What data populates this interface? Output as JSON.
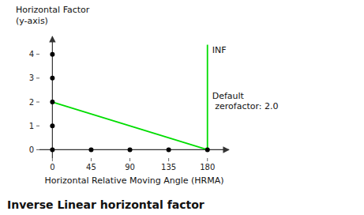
{
  "chart_data": {
    "type": "line",
    "title": "Inverse Linear horizontal factor",
    "ylabel_lines": [
      "Horizontal Factor",
      "(y-axis)"
    ],
    "xlabel": "Horizontal Relative Moving Angle (HRMA)",
    "xlim": [
      -15,
      205
    ],
    "ylim": [
      -0.35,
      4.75
    ],
    "xticks": [
      0,
      45,
      90,
      135,
      180
    ],
    "yticks": [
      0,
      1,
      2,
      3,
      4
    ],
    "grid": false,
    "series": [
      {
        "type": "line",
        "color": "#00dd00",
        "x": [
          0,
          180
        ],
        "values": [
          2.0,
          0.0
        ]
      },
      {
        "type": "line",
        "color": "#00dd00",
        "x": [
          180,
          180
        ],
        "values": [
          0.0,
          4.4
        ]
      },
      {
        "type": "scatter",
        "color": "#000000",
        "x": [
          0,
          0,
          0,
          0,
          0,
          45,
          90,
          135,
          180
        ],
        "values": [
          0,
          1,
          2,
          3,
          4,
          0,
          0,
          0,
          0
        ]
      }
    ],
    "annotations": [
      "INF",
      "Default\n zerofactor: 2.0"
    ]
  }
}
